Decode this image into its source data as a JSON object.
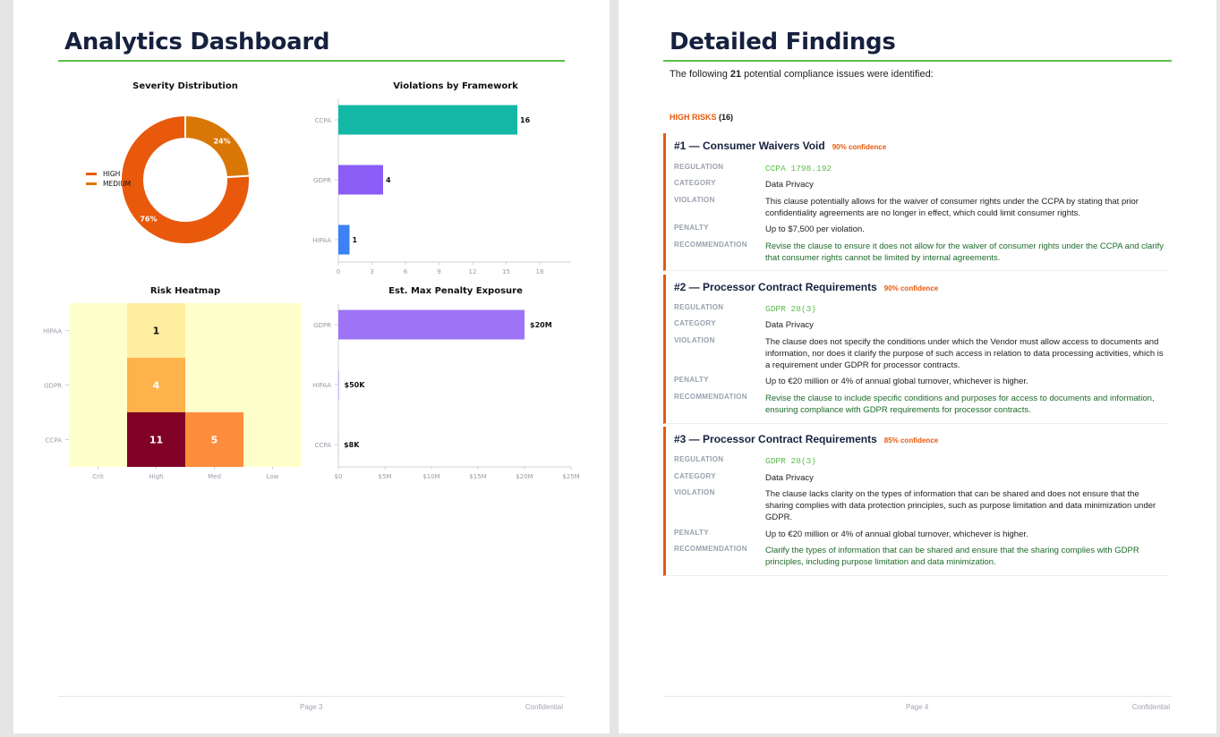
{
  "page3": {
    "title": "Analytics Dashboard",
    "footer": {
      "page": "Page 3",
      "confidential": "Confidential"
    }
  },
  "page4": {
    "title": "Detailed Findings",
    "intro": {
      "before": "The following ",
      "count": "21",
      "after": " potential compliance issues were identified:"
    },
    "risk_header": {
      "label": "HIGH RISKS",
      "count": "(16)"
    },
    "labels": {
      "regulation": "REGULATION",
      "category": "CATEGORY",
      "violation": "VIOLATION",
      "penalty": "PENALTY",
      "recommendation": "RECOMMENDATION"
    },
    "findings": [
      {
        "title": "#1 — Consumer Waivers Void",
        "confidence": "90% confidence",
        "regulation": "CCPA 1798.192",
        "category": "Data Privacy",
        "violation": "This clause potentially allows for the waiver of consumer rights under the CCPA by stating that prior confidentiality agreements are no longer in effect, which could limit consumer rights.",
        "penalty": "Up to $7,500 per violation.",
        "recommendation": "Revise the clause to ensure it does not allow for the waiver of consumer rights under the CCPA and clarify that consumer rights cannot be limited by internal agreements."
      },
      {
        "title": "#2 — Processor Contract Requirements",
        "confidence": "90% confidence",
        "regulation": "GDPR 28(3)",
        "category": "Data Privacy",
        "violation": "The clause does not specify the conditions under which the Vendor must allow access to documents and information, nor does it clarify the purpose of such access in relation to data processing activities, which is a requirement under GDPR for processor contracts.",
        "penalty": "Up to €20 million or 4% of annual global turnover, whichever is higher.",
        "recommendation": "Revise the clause to include specific conditions and purposes for access to documents and information, ensuring compliance with GDPR requirements for processor contracts."
      },
      {
        "title": "#3 — Processor Contract Requirements",
        "confidence": "85% confidence",
        "regulation": "GDPR 28(3)",
        "category": "Data Privacy",
        "violation": "The clause lacks clarity on the types of information that can be shared and does not ensure that the sharing complies with data protection principles, such as purpose limitation and data minimization under GDPR.",
        "penalty": "Up to €20 million or 4% of annual global turnover, whichever is higher.",
        "recommendation": "Clarify the types of information that can be shared and ensure that the sharing complies with GDPR principles, including purpose limitation and data minimization."
      }
    ],
    "footer": {
      "page": "Page 4",
      "confidential": "Confidential"
    }
  },
  "chart_data": [
    {
      "type": "pie",
      "title": "Severity Distribution",
      "categories": [
        "HIGH",
        "MEDIUM"
      ],
      "values": [
        76,
        24
      ],
      "labels": [
        "76%",
        "24%"
      ],
      "colors": [
        "#e8590c",
        "#d97706"
      ],
      "legend": "left"
    },
    {
      "type": "bar",
      "orientation": "horizontal",
      "title": "Violations by Framework",
      "categories": [
        "CCPA",
        "GDPR",
        "HIPAA"
      ],
      "values": [
        16,
        4,
        1
      ],
      "value_labels": [
        "16",
        "4",
        "1"
      ],
      "colors": [
        "#14b8a6",
        "#8b5cf6",
        "#3b82f6"
      ],
      "xlim": [
        0,
        20
      ],
      "xticks": [
        0,
        3,
        6,
        9,
        12,
        15,
        18
      ]
    },
    {
      "type": "heatmap",
      "title": "Risk Heatmap",
      "rows": [
        "HIPAA",
        "GDPR",
        "CCPA"
      ],
      "columns": [
        "Crit",
        "High",
        "Med",
        "Low"
      ],
      "values": [
        [
          0,
          1,
          0,
          0
        ],
        [
          0,
          4,
          0,
          0
        ],
        [
          0,
          11,
          5,
          0
        ]
      ],
      "colors": {
        "0": "#ffffcc",
        "1": "#ffeda0",
        "4": "#feb24c",
        "5": "#fd8d3c",
        "11": "#800026"
      }
    },
    {
      "type": "bar",
      "orientation": "horizontal",
      "title": "Est. Max Penalty Exposure",
      "categories": [
        "GDPR",
        "HIPAA",
        "CCPA"
      ],
      "values": [
        20000000,
        50000,
        7500
      ],
      "value_labels": [
        "$20M",
        "$50K",
        "$8K"
      ],
      "color": "#9d74f5",
      "xlim": [
        0,
        25000000
      ],
      "xticks": [
        0,
        5000000,
        10000000,
        15000000,
        20000000,
        25000000
      ],
      "xtick_labels": [
        "$0",
        "$5M",
        "$10M",
        "$15M",
        "$20M",
        "$25M"
      ]
    }
  ]
}
